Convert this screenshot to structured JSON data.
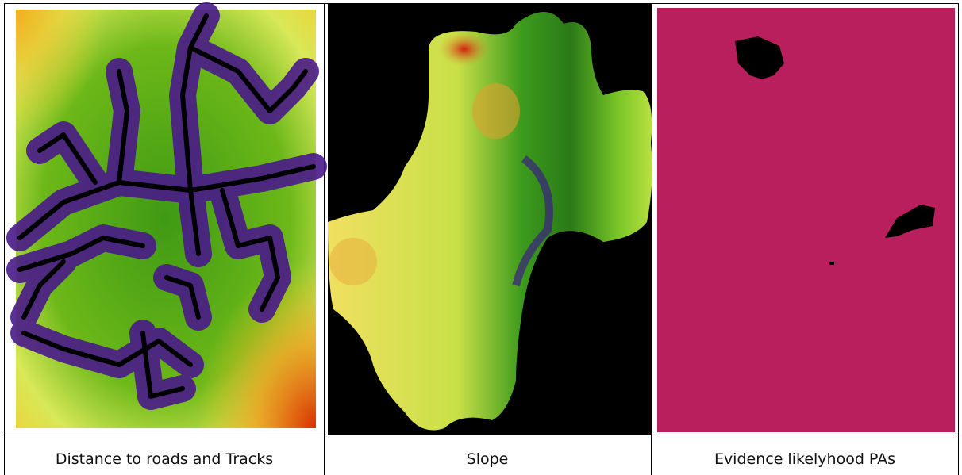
{
  "figure": {
    "captions": [
      "Distance to roads and Tracks",
      "Slope",
      "Evidence likelyhood PAs"
    ]
  }
}
